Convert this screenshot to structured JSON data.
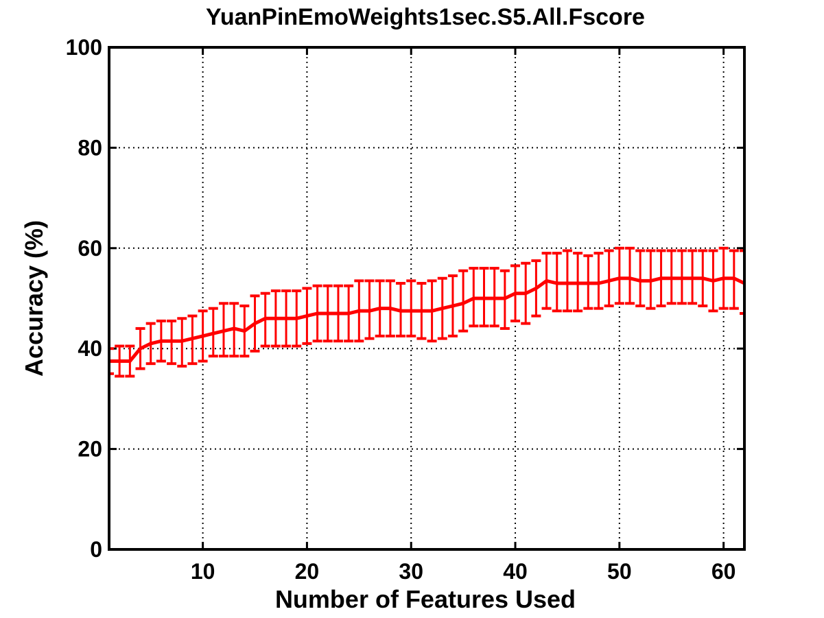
{
  "chart_data": {
    "type": "line",
    "title": "YuanPinEmoWeights1sec.S5.All.Fscore",
    "xlabel": "Number of Features Used",
    "ylabel": "Accuracy (%)",
    "xlim": [
      1,
      62
    ],
    "ylim": [
      0,
      100
    ],
    "xticks": [
      10,
      20,
      30,
      40,
      50,
      60
    ],
    "yticks": [
      0,
      20,
      40,
      60,
      80,
      100
    ],
    "xtick_labels": [
      "10",
      "20",
      "30",
      "40",
      "50",
      "60"
    ],
    "ytick_labels": [
      "0",
      "20",
      "40",
      "60",
      "80",
      "100"
    ],
    "grid": true,
    "grid_style": "dotted",
    "series": [
      {
        "color": "#ff0000",
        "error_bars": true,
        "x": [
          1,
          2,
          3,
          4,
          5,
          6,
          7,
          8,
          9,
          10,
          11,
          12,
          13,
          14,
          15,
          16,
          17,
          18,
          19,
          20,
          21,
          22,
          23,
          24,
          25,
          26,
          27,
          28,
          29,
          30,
          31,
          32,
          33,
          34,
          35,
          36,
          37,
          38,
          39,
          40,
          41,
          42,
          43,
          44,
          45,
          46,
          47,
          48,
          49,
          50,
          51,
          52,
          53,
          54,
          55,
          56,
          57,
          58,
          59,
          60,
          61,
          62
        ],
        "mean": [
          37.5,
          37.5,
          37.5,
          40.0,
          41.0,
          41.5,
          41.5,
          41.5,
          42.0,
          42.5,
          43.0,
          43.5,
          44.0,
          43.5,
          45.0,
          46.0,
          46.0,
          46.0,
          46.0,
          46.5,
          47.0,
          47.0,
          47.0,
          47.0,
          47.5,
          47.5,
          48.0,
          48.0,
          47.5,
          47.5,
          47.5,
          47.5,
          48.0,
          48.5,
          49.0,
          50.0,
          50.0,
          50.0,
          50.0,
          51.0,
          51.0,
          52.0,
          53.5,
          53.0,
          53.0,
          53.0,
          53.0,
          53.0,
          53.5,
          54.0,
          54.0,
          53.5,
          53.5,
          54.0,
          54.0,
          54.0,
          54.0,
          54.0,
          53.5,
          54.0,
          54.0,
          53.0
        ],
        "lower": [
          35.0,
          34.5,
          34.5,
          36.0,
          37.0,
          37.5,
          37.0,
          36.5,
          37.0,
          37.5,
          38.5,
          38.5,
          38.5,
          38.5,
          39.5,
          40.5,
          40.5,
          40.5,
          40.5,
          41.0,
          41.5,
          41.5,
          41.5,
          41.5,
          41.5,
          42.0,
          42.5,
          42.5,
          42.5,
          42.5,
          42.0,
          41.5,
          42.0,
          42.5,
          43.5,
          44.5,
          44.5,
          44.5,
          44.0,
          45.5,
          45.0,
          46.5,
          48.0,
          47.5,
          47.5,
          47.5,
          48.0,
          48.0,
          48.5,
          49.0,
          49.0,
          48.5,
          48.0,
          48.5,
          49.0,
          49.0,
          49.0,
          48.5,
          47.5,
          48.0,
          48.0,
          47.0
        ],
        "upper": [
          40.0,
          40.5,
          40.5,
          44.0,
          45.0,
          45.5,
          45.5,
          46.0,
          46.5,
          47.5,
          48.0,
          49.0,
          49.0,
          48.5,
          50.5,
          51.0,
          51.5,
          51.5,
          51.5,
          52.0,
          52.5,
          52.5,
          52.5,
          52.5,
          53.5,
          53.5,
          53.5,
          53.5,
          53.0,
          53.5,
          53.0,
          53.5,
          54.0,
          54.5,
          55.5,
          56.0,
          56.0,
          56.0,
          55.5,
          56.5,
          57.0,
          57.5,
          59.0,
          59.0,
          59.5,
          59.0,
          58.5,
          59.0,
          59.5,
          60.0,
          60.0,
          59.5,
          59.5,
          59.5,
          59.5,
          59.5,
          59.5,
          59.5,
          59.5,
          60.0,
          59.5,
          59.5
        ]
      }
    ]
  }
}
